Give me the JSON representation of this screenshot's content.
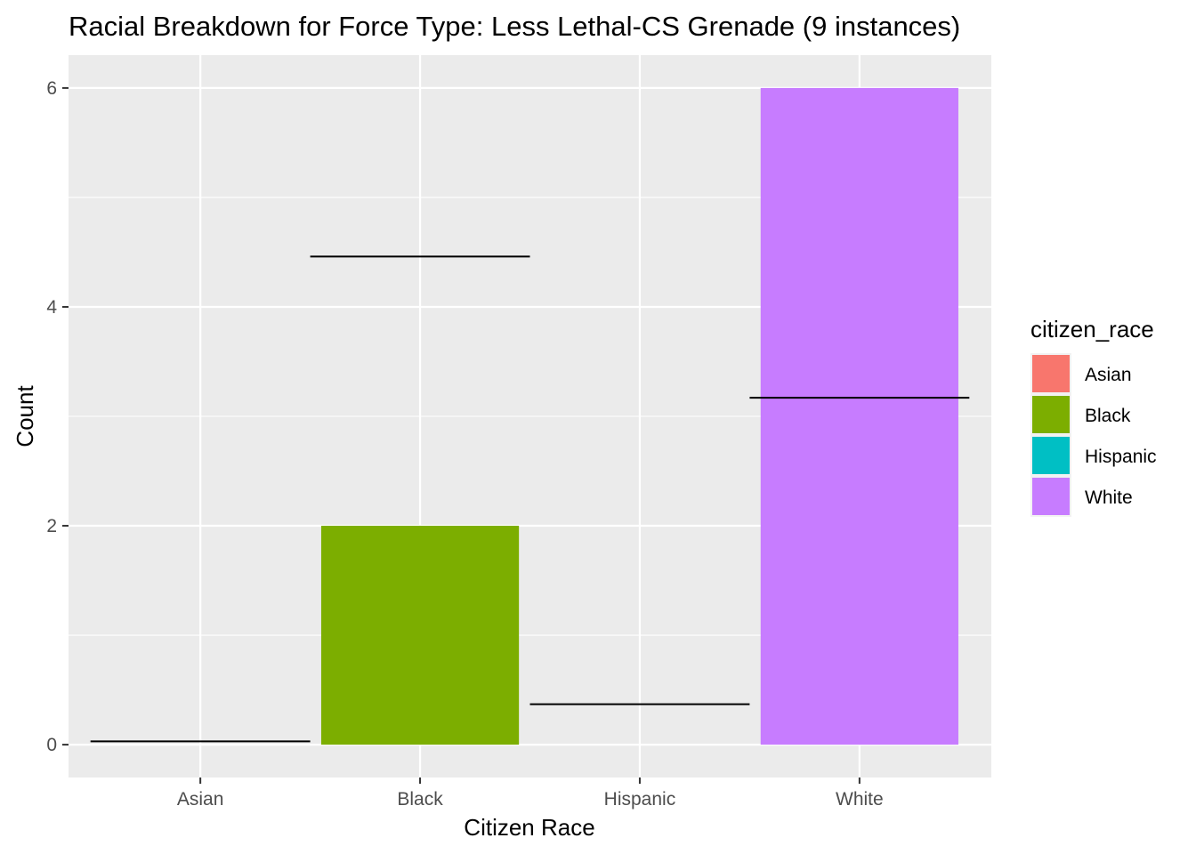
{
  "chart_data": {
    "type": "bar",
    "title": "Racial Breakdown for Force Type: Less Lethal-CS Grenade (9 instances)",
    "xlabel": "Citizen Race",
    "ylabel": "Count",
    "categories": [
      "Asian",
      "Black",
      "Hispanic",
      "White"
    ],
    "values": [
      0,
      2,
      0,
      6
    ],
    "colors": [
      "#F8766D",
      "#7CAE00",
      "#00BFC4",
      "#C77CFF"
    ],
    "reference_lines": [
      0.03,
      4.46,
      0.37,
      3.17
    ],
    "ylim": [
      -0.3,
      6.3
    ],
    "yticks": [
      0,
      2,
      4,
      6
    ],
    "ytick_labels": [
      "0",
      "2",
      "4",
      "6"
    ],
    "grid": true,
    "background": "#EBEBEB",
    "legend": {
      "title": "citizen_race",
      "placement": "right",
      "entries": [
        "Asian",
        "Black",
        "Hispanic",
        "White"
      ]
    }
  }
}
